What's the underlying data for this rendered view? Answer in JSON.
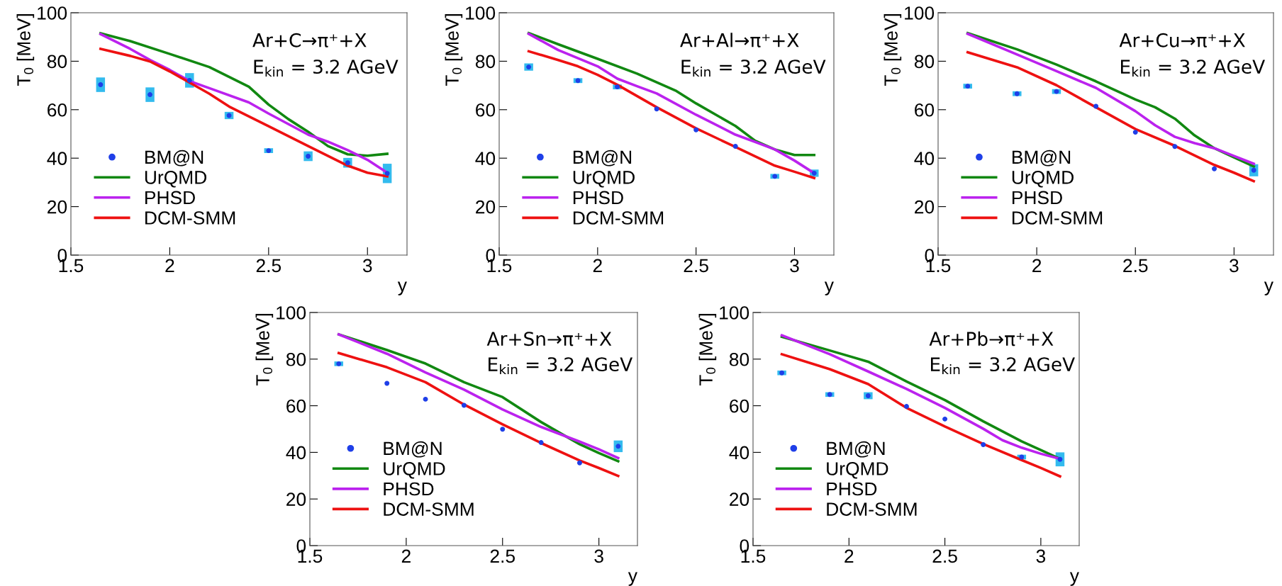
{
  "chart_data": [
    {
      "type": "line",
      "xlabel": "y",
      "ylabel": "T$_{0}$ [MeV]",
      "annotations": [
        "Ar+C→π⁺+X",
        "E$_{kin}$ = 3.2 AGeV"
      ],
      "xlim": [
        1.5,
        3.2
      ],
      "ylim": [
        0,
        100
      ],
      "xticks": [
        1.5,
        2,
        2.5,
        3
      ],
      "yticks": [
        0,
        20,
        40,
        60,
        80,
        100
      ],
      "grid": false,
      "legend": "bottom left",
      "series": [
        {
          "name": "BM@N",
          "type": "scatter",
          "color": "#1f3fe8",
          "marker": "circle",
          "x": [
            1.65,
            1.9,
            2.1,
            2.3,
            2.5,
            2.7,
            2.9,
            3.1
          ],
          "values": [
            70.3,
            66.2,
            72.1,
            57.6,
            43.1,
            40.8,
            38.1,
            33.7
          ],
          "errors": [
            3,
            3,
            3,
            1.5,
            1,
            2,
            2,
            4
          ]
        },
        {
          "name": "UrQMD",
          "color": "#118811",
          "x": [
            1.65,
            1.8,
            2.0,
            2.2,
            2.4,
            2.5,
            2.6,
            2.7,
            2.8,
            2.9,
            3.0,
            3.1
          ],
          "values": [
            91.5,
            88.3,
            83,
            77.6,
            69.5,
            62.1,
            56.1,
            50.9,
            45,
            41.6,
            41,
            41.8
          ]
        },
        {
          "name": "PHSD",
          "color": "#bb22ee",
          "x": [
            1.65,
            1.8,
            1.9,
            2.0,
            2.1,
            2.2,
            2.4,
            2.5,
            2.7,
            2.8,
            2.9,
            3.0,
            3.1
          ],
          "values": [
            91.2,
            85.1,
            80.5,
            76.4,
            71.8,
            68.9,
            63,
            58.4,
            49.7,
            46.8,
            43.3,
            39.3,
            34
          ]
        },
        {
          "name": "DCM-SMM",
          "color": "#ee1111",
          "x": [
            1.65,
            1.8,
            1.9,
            2.0,
            2.1,
            2.2,
            2.3,
            2.5,
            2.7,
            2.9,
            3.0,
            3.1
          ],
          "values": [
            85.1,
            82.2,
            79.9,
            75.8,
            71.2,
            66.6,
            61.3,
            53.2,
            45,
            36.9,
            34,
            32.5
          ]
        }
      ]
    },
    {
      "type": "line",
      "xlabel": "y",
      "ylabel": "T$_{0}$ [MeV]",
      "annotations": [
        "Ar+Al→π⁺+X",
        "E$_{kin}$ = 3.2 AGeV"
      ],
      "xlim": [
        1.5,
        3.2
      ],
      "ylim": [
        0,
        100
      ],
      "xticks": [
        1.5,
        2,
        2.5,
        3
      ],
      "yticks": [
        0,
        20,
        40,
        60,
        80,
        100
      ],
      "grid": false,
      "legend": "bottom left",
      "series": [
        {
          "name": "BM@N",
          "type": "scatter",
          "color": "#1f3fe8",
          "marker": "circle",
          "x": [
            1.65,
            1.9,
            2.1,
            2.3,
            2.5,
            2.7,
            2.9,
            3.1
          ],
          "values": [
            77.6,
            72.0,
            69.4,
            60.3,
            51.7,
            44.9,
            32.5,
            33.8
          ],
          "errors": [
            1.5,
            1,
            1,
            null,
            null,
            null,
            1,
            1.5
          ]
        },
        {
          "name": "UrQMD",
          "color": "#118811",
          "x": [
            1.65,
            1.8,
            2.0,
            2.2,
            2.4,
            2.5,
            2.7,
            2.8,
            2.9,
            3.0,
            3.1
          ],
          "values": [
            91.6,
            87,
            81,
            74.9,
            67.7,
            62.6,
            53.3,
            47.2,
            43.6,
            41.3,
            41.3
          ]
        },
        {
          "name": "PHSD",
          "color": "#bb22ee",
          "x": [
            1.65,
            1.8,
            2.0,
            2.1,
            2.2,
            2.3,
            2.5,
            2.7,
            2.8,
            2.9,
            3.0,
            3.1
          ],
          "values": [
            91.3,
            84.6,
            77.9,
            72.8,
            69.7,
            66.7,
            57.9,
            49.7,
            46.7,
            43.6,
            39,
            33.8
          ]
        },
        {
          "name": "DCM-SMM",
          "color": "#ee1111",
          "x": [
            1.65,
            1.8,
            1.9,
            2.0,
            2.1,
            2.3,
            2.5,
            2.7,
            2.9,
            3.0,
            3.1
          ],
          "values": [
            84.1,
            80.5,
            77.9,
            74.4,
            70.3,
            61,
            52.3,
            44.6,
            36.9,
            34.4,
            31.8
          ]
        }
      ]
    },
    {
      "type": "line",
      "xlabel": "y",
      "ylabel": "T$_{0}$ [MeV]",
      "annotations": [
        "Ar+Cu→π⁺+X",
        "E$_{kin}$ = 3.2 AGeV"
      ],
      "xlim": [
        1.5,
        3.2
      ],
      "ylim": [
        0,
        100
      ],
      "xticks": [
        1.5,
        2,
        2.5,
        3
      ],
      "yticks": [
        0,
        20,
        40,
        60,
        80,
        100
      ],
      "grid": false,
      "legend": "bottom left",
      "series": [
        {
          "name": "BM@N",
          "type": "scatter",
          "color": "#1f3fe8",
          "marker": "circle",
          "x": [
            1.65,
            1.9,
            2.1,
            2.3,
            2.5,
            2.7,
            2.9,
            3.1
          ],
          "values": [
            69.7,
            66.6,
            67.5,
            61.4,
            50.7,
            44.8,
            35.6,
            35
          ],
          "errors": [
            1,
            1,
            1,
            null,
            null,
            null,
            null,
            2.5
          ]
        },
        {
          "name": "UrQMD",
          "color": "#118811",
          "x": [
            1.65,
            1.9,
            2.1,
            2.3,
            2.5,
            2.6,
            2.7,
            2.8,
            2.9,
            3.0,
            3.1
          ],
          "values": [
            91.6,
            84.9,
            78.6,
            71.7,
            64.2,
            61,
            56.3,
            49.4,
            44.1,
            40.3,
            36.6
          ]
        },
        {
          "name": "PHSD",
          "color": "#bb22ee",
          "x": [
            1.65,
            1.9,
            2.1,
            2.3,
            2.5,
            2.6,
            2.7,
            2.8,
            2.9,
            3.0,
            3.1
          ],
          "values": [
            91.3,
            82.8,
            75.9,
            69,
            59.4,
            53.6,
            48.8,
            46.2,
            44.1,
            40.9,
            37.7
          ]
        },
        {
          "name": "DCM-SMM",
          "color": "#ee1111",
          "x": [
            1.65,
            1.9,
            2.1,
            2.3,
            2.5,
            2.7,
            2.9,
            3.0,
            3.1
          ],
          "values": [
            83.7,
            77.5,
            70.1,
            61,
            52,
            45.1,
            37.2,
            34,
            30.5
          ]
        }
      ]
    },
    {
      "type": "line",
      "xlabel": "y",
      "ylabel": "T$_{0}$ [MeV]",
      "annotations": [
        "Ar+Sn→π⁺+X",
        "E$_{kin}$ = 3.2 AGeV"
      ],
      "xlim": [
        1.5,
        3.2
      ],
      "ylim": [
        0,
        100
      ],
      "xticks": [
        1.5,
        2,
        2.5,
        3
      ],
      "yticks": [
        0,
        20,
        40,
        60,
        80,
        100
      ],
      "grid": false,
      "legend": "bottom left",
      "series": [
        {
          "name": "BM@N",
          "type": "scatter",
          "color": "#1f3fe8",
          "marker": "circle",
          "x": [
            1.65,
            1.9,
            2.1,
            2.3,
            2.5,
            2.7,
            2.9,
            3.1
          ],
          "values": [
            78,
            69.6,
            62.8,
            60.2,
            49.9,
            44.2,
            35.5,
            42.6
          ],
          "errors": [
            1,
            null,
            null,
            null,
            null,
            null,
            null,
            2.5
          ]
        },
        {
          "name": "UrQMD",
          "color": "#118811",
          "x": [
            1.65,
            1.9,
            2.1,
            2.3,
            2.5,
            2.7,
            2.8,
            2.9,
            3.0,
            3.1
          ],
          "values": [
            90.6,
            83.9,
            78.1,
            70.1,
            63.7,
            53,
            48.2,
            43.5,
            39.7,
            36.2
          ]
        },
        {
          "name": "PHSD",
          "color": "#bb22ee",
          "x": [
            1.65,
            1.9,
            2.1,
            2.3,
            2.5,
            2.7,
            2.9,
            3.0,
            3.1
          ],
          "values": [
            90.6,
            82.3,
            74.3,
            66.9,
            58.4,
            50.9,
            44.6,
            41.3,
            37.6
          ]
        },
        {
          "name": "DCM-SMM",
          "color": "#ee1111",
          "x": [
            1.65,
            1.9,
            2.1,
            2.3,
            2.5,
            2.7,
            2.9,
            3.0,
            3.1
          ],
          "values": [
            82.6,
            76.5,
            70.1,
            60.5,
            52,
            44,
            36.5,
            33.3,
            29.9
          ]
        }
      ]
    },
    {
      "type": "line",
      "xlabel": "y",
      "ylabel": "T$_{0}$ [MeV]",
      "annotations": [
        "Ar+Pb→π⁺+X",
        "E$_{kin}$ = 3.2 AGeV"
      ],
      "xlim": [
        1.5,
        3.2
      ],
      "ylim": [
        0,
        100
      ],
      "xticks": [
        1.5,
        2,
        2.5,
        3
      ],
      "yticks": [
        0,
        20,
        40,
        60,
        80,
        100
      ],
      "grid": false,
      "legend": "bottom left",
      "series": [
        {
          "name": "BM@N",
          "type": "scatter",
          "color": "#1f3fe8",
          "marker": "circle",
          "x": [
            1.65,
            1.9,
            2.1,
            2.3,
            2.5,
            2.7,
            2.9,
            3.1
          ],
          "values": [
            74.1,
            64.8,
            64.3,
            59.7,
            54.3,
            43.3,
            38,
            37
          ],
          "errors": [
            1,
            1,
            1.5,
            null,
            null,
            null,
            1,
            3
          ]
        },
        {
          "name": "UrQMD",
          "color": "#118811",
          "x": [
            1.65,
            1.9,
            2.1,
            2.3,
            2.5,
            2.7,
            2.9,
            3.0,
            3.1
          ],
          "values": [
            89.6,
            83.7,
            78.9,
            70.4,
            62.4,
            53.3,
            44.7,
            41,
            37.2
          ]
        },
        {
          "name": "PHSD",
          "color": "#bb22ee",
          "x": [
            1.65,
            1.9,
            2.1,
            2.3,
            2.5,
            2.7,
            2.8,
            2.9,
            3.0,
            3.1
          ],
          "values": [
            90.2,
            82.1,
            74.7,
            67.2,
            59.1,
            50.1,
            45.2,
            42,
            39.4,
            37.2
          ]
        },
        {
          "name": "DCM-SMM",
          "color": "#ee1111",
          "x": [
            1.65,
            1.9,
            2.1,
            2.3,
            2.5,
            2.7,
            2.9,
            3.0,
            3.1
          ],
          "values": [
            82.1,
            75.7,
            69.3,
            59.1,
            51.1,
            43.6,
            36.7,
            33.3,
            29.7
          ]
        }
      ]
    }
  ]
}
